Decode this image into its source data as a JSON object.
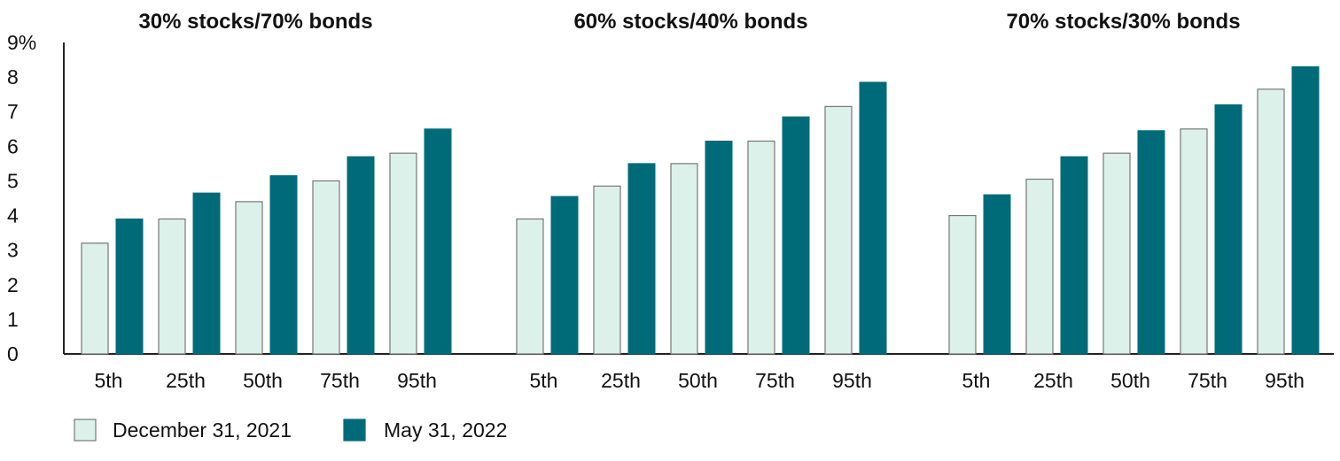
{
  "chart_data": {
    "type": "bar",
    "y_ticks": [
      "9%",
      "8",
      "7",
      "6",
      "5",
      "4",
      "3",
      "2",
      "1",
      "0"
    ],
    "y_tick_values": [
      9,
      8,
      7,
      6,
      5,
      4,
      3,
      2,
      1,
      0
    ],
    "ylim": [
      0,
      9
    ],
    "grid": false,
    "legend_position": "bottom-left",
    "categories": [
      "5th",
      "25th",
      "50th",
      "75th",
      "95th"
    ],
    "series_meta": [
      {
        "name": "December 31, 2021",
        "color": "#dcf1ea",
        "stroke": "#777777"
      },
      {
        "name": "May 31, 2022",
        "color": "#006b78",
        "stroke": "#006b78"
      }
    ],
    "groups": [
      {
        "title": "30% stocks/70% bonds",
        "series": [
          {
            "name": "December 31, 2021",
            "values": [
              3.2,
              3.9,
              4.4,
              5.0,
              5.8
            ]
          },
          {
            "name": "May 31, 2022",
            "values": [
              3.9,
              4.65,
              5.15,
              5.7,
              6.5
            ]
          }
        ]
      },
      {
        "title": "60% stocks/40% bonds",
        "series": [
          {
            "name": "December 31, 2021",
            "values": [
              3.9,
              4.85,
              5.5,
              6.15,
              7.15
            ]
          },
          {
            "name": "May 31, 2022",
            "values": [
              4.55,
              5.5,
              6.15,
              6.85,
              7.85
            ]
          }
        ]
      },
      {
        "title": "70% stocks/30% bonds",
        "series": [
          {
            "name": "December 31, 2021",
            "values": [
              4.0,
              5.05,
              5.8,
              6.5,
              7.65
            ]
          },
          {
            "name": "May 31, 2022",
            "values": [
              4.6,
              5.7,
              6.45,
              7.2,
              8.3
            ]
          }
        ]
      }
    ]
  }
}
